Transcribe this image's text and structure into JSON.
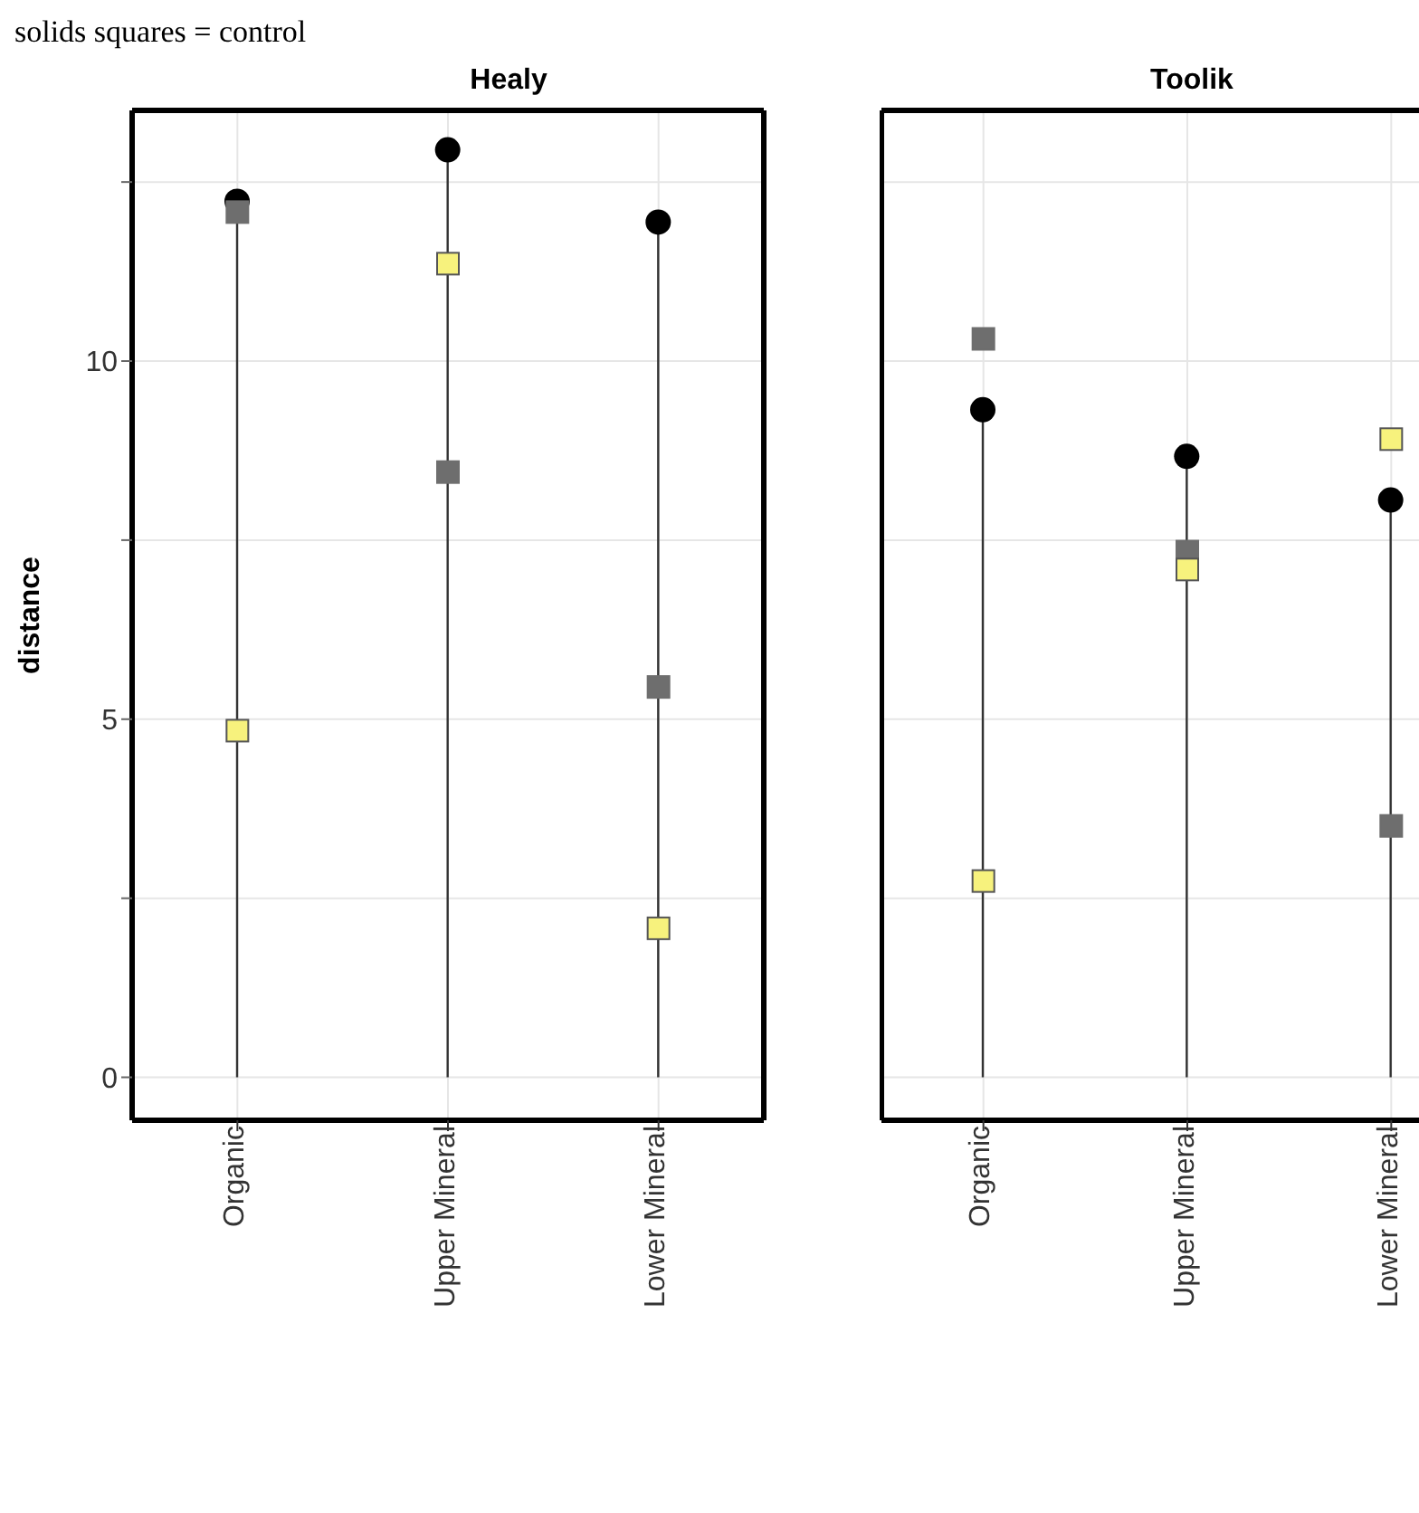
{
  "chart_data": [
    {
      "type": "lollipop",
      "title": "Healy",
      "ylabel": "distance",
      "annotations": [
        "solids squares = control"
      ],
      "categories": [
        "Organic",
        "Upper Mineral",
        "Lower Mineral"
      ],
      "ylim": [
        -0.6,
        13.5
      ],
      "yticks": [
        0,
        {
          "value": 2.5,
          "label": null
        },
        5,
        {
          "value": 7.5,
          "label": null
        },
        10,
        {
          "value": 12.5,
          "label": null
        }
      ],
      "grid": true,
      "legend": false,
      "series": [
        {
          "type": "lollipop",
          "color": "#000000",
          "marker": "circle",
          "values": [
            12.23,
            12.95,
            11.94
          ]
        },
        {
          "type": "scatter",
          "color": "#6e6e6e",
          "marker": "square",
          "values": [
            12.08,
            8.45,
            5.45
          ]
        },
        {
          "type": "scatter",
          "color": "#f7f27d",
          "marker": "square",
          "values": [
            4.84,
            11.36,
            2.08
          ]
        }
      ]
    },
    {
      "type": "lollipop",
      "title": "Toolik",
      "categories": [
        "Organic",
        "Upper Mineral",
        "Lower Mineral"
      ],
      "ylim": [
        -0.6,
        13.5
      ],
      "yticks": [
        0,
        {
          "value": 2.5,
          "label": null
        },
        5,
        {
          "value": 7.5,
          "label": null
        },
        10,
        {
          "value": 12.5,
          "label": null
        }
      ],
      "grid": true,
      "legend": false,
      "tick_labels": "x",
      "series": [
        {
          "type": "lollipop",
          "color": "#000000",
          "marker": "circle",
          "values": [
            9.32,
            8.67,
            8.06
          ]
        },
        {
          "type": "scatter",
          "color": "#6e6e6e",
          "marker": "square",
          "values": [
            10.31,
            7.34,
            3.51
          ]
        },
        {
          "type": "scatter",
          "color": "#f7f27d",
          "marker": "square",
          "values": [
            2.74,
            7.09,
            8.91
          ]
        }
      ]
    }
  ]
}
